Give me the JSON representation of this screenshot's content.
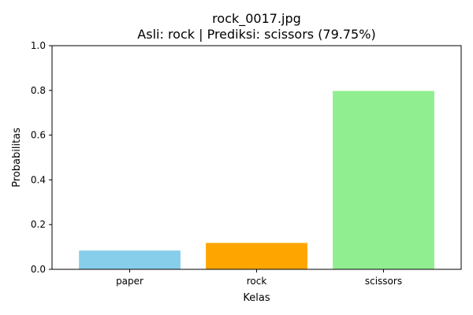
{
  "chart_data": {
    "type": "bar",
    "title_line1": "rock_0017.jpg",
    "title_line2": "Asli: rock | Prediksi: scissors (79.75%)",
    "xlabel": "Kelas",
    "ylabel": "Probabilitas",
    "categories": [
      "paper",
      "rock",
      "scissors"
    ],
    "values": [
      0.084,
      0.118,
      0.7975
    ],
    "colors": [
      "#87ceeb",
      "#ffa500",
      "#90ee90"
    ],
    "ylim": [
      0,
      1.0
    ],
    "yticks": [
      "0.0",
      "0.2",
      "0.4",
      "0.6",
      "0.8",
      "1.0"
    ],
    "grid": false,
    "legend": "none"
  }
}
